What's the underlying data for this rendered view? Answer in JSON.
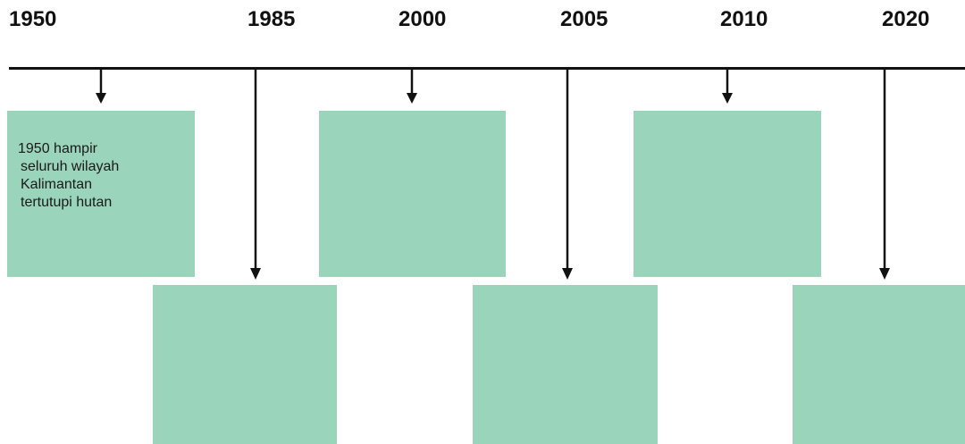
{
  "timeline": {
    "events": [
      {
        "year": "1950",
        "position": "above",
        "text_lines": [
          "1950 hampir",
          "seluruh wilayah",
          "Kalimantan",
          "tertutupi hutan"
        ]
      },
      {
        "year": "1985",
        "position": "below",
        "text_lines": []
      },
      {
        "year": "2000",
        "position": "above",
        "text_lines": []
      },
      {
        "year": "2005",
        "position": "below",
        "text_lines": []
      },
      {
        "year": "2010",
        "position": "above",
        "text_lines": []
      },
      {
        "year": "2020",
        "position": "below",
        "text_lines": []
      }
    ],
    "colors": {
      "box_fill": "#99d4bb",
      "line": "#111111",
      "text": "#1a1a1a"
    }
  }
}
